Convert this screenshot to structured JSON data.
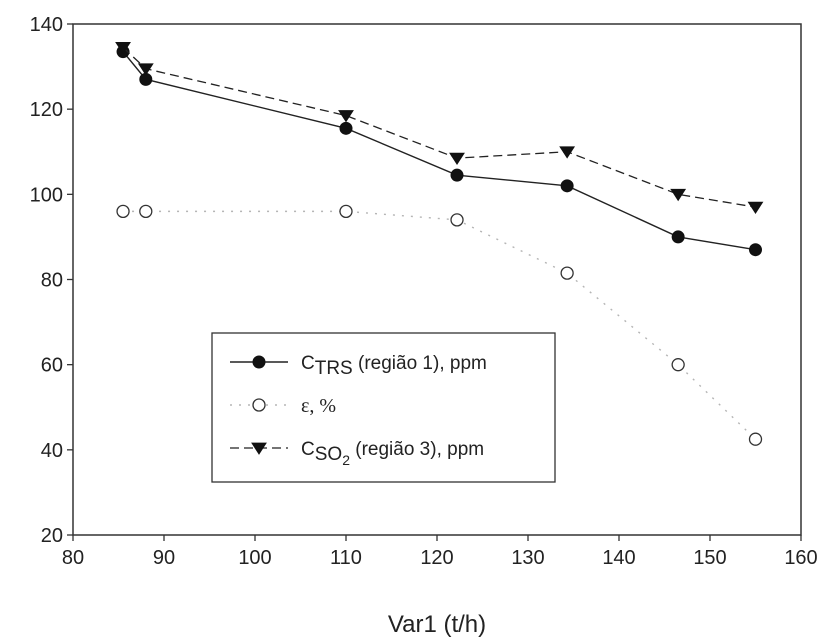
{
  "chart_data": {
    "type": "line",
    "xlabel": "Var1 (t/h)",
    "ylabel": "",
    "xlim": [
      80,
      160
    ],
    "ylim": [
      20,
      140
    ],
    "xticks": [
      80,
      90,
      100,
      110,
      120,
      130,
      140,
      150,
      160
    ],
    "yticks": [
      20,
      40,
      60,
      80,
      100,
      120,
      140
    ],
    "grid": false,
    "legend_position": "center-left",
    "series": [
      {
        "name": "CTRS (região 1), ppm",
        "legend": {
          "main": "C",
          "sub": "TRS",
          "rest": " (região 1), ppm"
        },
        "marker": "filled-circle",
        "line": "solid",
        "x": [
          85.5,
          88,
          110,
          122.2,
          134.3,
          146.5,
          155
        ],
        "y": [
          133.5,
          127,
          115.5,
          104.5,
          102,
          90,
          87
        ]
      },
      {
        "name": "ε, %",
        "legend": {
          "main": "ε, %",
          "sub": "",
          "rest": ""
        },
        "marker": "open-circle",
        "line": "dotted",
        "x": [
          85.5,
          88,
          110,
          122.2,
          134.3,
          146.5,
          155
        ],
        "y": [
          96,
          96,
          96,
          94,
          81.5,
          60,
          42.5
        ]
      },
      {
        "name": "CSO2 (região 3), ppm",
        "legend": {
          "main": "C",
          "sub": "SO",
          "subsub": "2",
          "rest": " (região 3), ppm"
        },
        "marker": "filled-triangle-down",
        "line": "dashed",
        "x": [
          85.5,
          88,
          110,
          122.2,
          134.3,
          146.5,
          155
        ],
        "y": [
          134.5,
          129.5,
          118.5,
          108.5,
          110,
          100,
          97
        ]
      }
    ]
  }
}
